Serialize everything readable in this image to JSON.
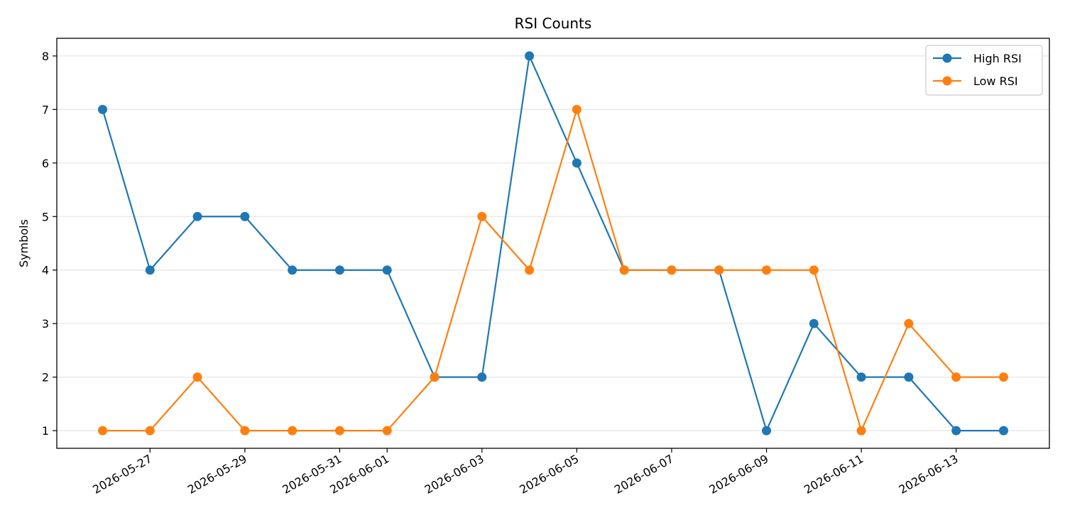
{
  "chart_data": {
    "type": "line",
    "title": "RSI Counts",
    "xlabel": "",
    "ylabel": "Symbols",
    "x": [
      "2026-05-26",
      "2026-05-27",
      "2026-05-28",
      "2026-05-29",
      "2026-05-30",
      "2026-05-31",
      "2026-06-01",
      "2026-06-02",
      "2026-06-03",
      "2026-06-04",
      "2026-06-05",
      "2026-06-06",
      "2026-06-07",
      "2026-06-08",
      "2026-06-09",
      "2026-06-10",
      "2026-06-11",
      "2026-06-12",
      "2026-06-13",
      "2026-06-14"
    ],
    "x_ticks": [
      "2026-05-27",
      "2026-05-29",
      "2026-05-31",
      "2026-06-01",
      "2026-06-03",
      "2026-06-05",
      "2026-06-07",
      "2026-06-09",
      "2026-06-11",
      "2026-06-13"
    ],
    "y_ticks": [
      1,
      2,
      3,
      4,
      5,
      6,
      7,
      8
    ],
    "ylim": [
      0.67,
      8.33
    ],
    "grid": "horizontal",
    "legend_position": "top-right",
    "series": [
      {
        "name": "High RSI",
        "color": "#1f77b4",
        "values": [
          7,
          4,
          5,
          5,
          4,
          4,
          4,
          2,
          2,
          8,
          6,
          4,
          4,
          4,
          1,
          3,
          2,
          2,
          1,
          1
        ]
      },
      {
        "name": "Low RSI",
        "color": "#ff7f0e",
        "values": [
          1,
          1,
          2,
          1,
          1,
          1,
          1,
          2,
          5,
          4,
          7,
          4,
          4,
          4,
          4,
          4,
          1,
          3,
          2,
          2
        ]
      }
    ]
  }
}
